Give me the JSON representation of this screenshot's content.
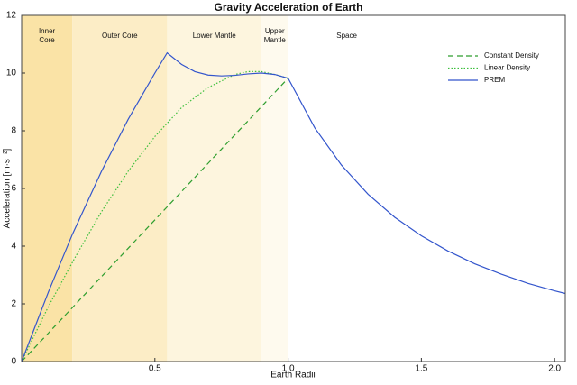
{
  "chart_data": {
    "type": "line",
    "title": "Gravity Acceleration of Earth",
    "x_label": "Earth Radii",
    "y_label": "Acceleration [m·s⁻²]",
    "xlim": [
      0,
      2.04
    ],
    "ylim": [
      0,
      12
    ],
    "xticks": [
      0.5,
      {
        "value": 1,
        "label": "1.0"
      },
      1.5,
      {
        "value": 2,
        "label": "2.0"
      }
    ],
    "yticks": [
      0,
      2,
      4,
      6,
      8,
      10,
      12
    ],
    "legend": "upper right",
    "regions": [
      {
        "label": "Inner Core",
        "start": 0,
        "end": 0.19,
        "color": "#fae3a6"
      },
      {
        "label": "Outer Core",
        "start": 0.19,
        "end": 0.546,
        "color": "#fcedc6"
      },
      {
        "label": "Lower Mantle",
        "start": 0.546,
        "end": 0.9,
        "color": "#fdf5de"
      },
      {
        "label": "Upper Mantle",
        "start": 0.9,
        "end": 1,
        "color": "#fefaee"
      },
      {
        "label": "Space",
        "start": 1,
        "end": 2.04,
        "color": "#ffffff"
      }
    ],
    "series": [
      {
        "name": "Constant Density",
        "color": "#2e9e2e",
        "style": "dashed",
        "x": [
          0,
          1
        ],
        "values": [
          0,
          9.82
        ]
      },
      {
        "name": "Linear Density",
        "color": "#3cbf3c",
        "style": "dotted",
        "x": [
          0,
          0.1,
          0.2,
          0.3,
          0.4,
          0.5,
          0.6,
          0.7,
          0.8,
          0.85,
          0.9,
          0.95,
          1
        ],
        "values": [
          0,
          1.9,
          3.6,
          5.2,
          6.6,
          7.8,
          8.8,
          9.5,
          9.95,
          10.05,
          10.05,
          9.95,
          9.82
        ]
      },
      {
        "name": "PREM",
        "color": "#3355cc",
        "style": "solid",
        "x": [
          0,
          0.05,
          0.1,
          0.19,
          0.25,
          0.3,
          0.35,
          0.4,
          0.45,
          0.5,
          0.546,
          0.6,
          0.65,
          0.7,
          0.75,
          0.8,
          0.85,
          0.9,
          0.95,
          1,
          1.1,
          1.2,
          1.3,
          1.4,
          1.5,
          1.6,
          1.7,
          1.8,
          1.9,
          2,
          2.04
        ],
        "values": [
          0,
          1.2,
          2.4,
          4.4,
          5.6,
          6.6,
          7.5,
          8.4,
          9.2,
          10,
          10.7,
          10.3,
          10.05,
          9.93,
          9.9,
          9.92,
          9.97,
          10,
          9.95,
          9.82,
          8.1,
          6.81,
          5.8,
          5,
          4.36,
          3.83,
          3.39,
          3.03,
          2.71,
          2.45,
          2.36
        ]
      }
    ]
  }
}
